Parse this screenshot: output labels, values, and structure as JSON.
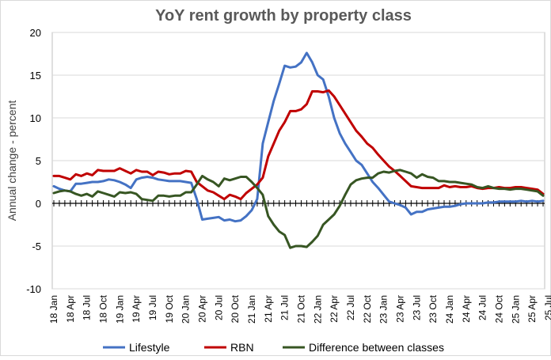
{
  "chart_data": {
    "type": "line",
    "title": "YoY rent growth by property class",
    "ylabel": "Annual change - percent",
    "xlabel": "",
    "ylim": [
      -10,
      20
    ],
    "yticks": [
      -10,
      -5,
      0,
      5,
      10,
      15,
      20
    ],
    "grid": "horizontal",
    "legend": "bottom",
    "x_tick_labels": [
      "18 Jan",
      "18 Apr",
      "18 Jul",
      "18 Oct",
      "19 Jan",
      "19 Apr",
      "19 Jul",
      "19 Oct",
      "20 Jan",
      "20 Apr",
      "20 Jul",
      "20 Oct",
      "21 Jan",
      "21 Apr",
      "21 Jul",
      "21 Oct",
      "22 Jan",
      "22 Apr",
      "22 Jul",
      "22 Oct",
      "23 Jan",
      "23 Apr",
      "23 Jul",
      "23 Oct",
      "24 Jan",
      "24 Apr",
      "24 Jul",
      "24 Oct",
      "25 Jan",
      "25 Apr",
      "25 Jul"
    ],
    "series": [
      {
        "name": "Lifestyle",
        "color": "#4472C4",
        "values": [
          2.0,
          1.7,
          1.5,
          1.4,
          2.3,
          2.3,
          2.4,
          2.5,
          2.5,
          2.6,
          2.8,
          2.7,
          2.5,
          2.2,
          1.8,
          2.8,
          3.0,
          3.1,
          3.0,
          2.8,
          2.7,
          2.6,
          2.6,
          2.6,
          2.5,
          2.4,
          0.5,
          -1.9,
          -1.8,
          -1.7,
          -1.6,
          -2.0,
          -1.9,
          -2.1,
          -2.0,
          -1.5,
          -0.8,
          0.5,
          7.0,
          9.5,
          12.0,
          14.0,
          16.1,
          15.9,
          16.0,
          16.5,
          17.6,
          16.5,
          15.0,
          14.5,
          12.5,
          10.0,
          8.2,
          7.0,
          6.0,
          5.0,
          4.5,
          3.5,
          2.5,
          1.8,
          1.0,
          0.2,
          0.0,
          -0.2,
          -0.5,
          -1.3,
          -1.0,
          -1.0,
          -0.7,
          -0.6,
          -0.5,
          -0.4,
          -0.4,
          -0.3,
          -0.1,
          0.0,
          0.0,
          0.0,
          0.0,
          0.1,
          0.1,
          0.2,
          0.2,
          0.2,
          0.2,
          0.3,
          0.2,
          0.3,
          0.2,
          0.3
        ]
      },
      {
        "name": "RBN",
        "color": "#C00000",
        "values": [
          3.2,
          3.2,
          3.0,
          2.8,
          3.4,
          3.2,
          3.5,
          3.3,
          3.9,
          3.8,
          3.8,
          3.8,
          4.1,
          3.8,
          3.5,
          3.9,
          3.7,
          3.7,
          3.3,
          3.7,
          3.6,
          3.4,
          3.5,
          3.5,
          3.8,
          3.7,
          2.5,
          2.0,
          1.5,
          1.3,
          0.9,
          0.5,
          1.0,
          0.8,
          0.5,
          1.2,
          1.7,
          2.2,
          3.0,
          5.5,
          7.0,
          8.5,
          9.5,
          10.8,
          10.8,
          11.0,
          11.6,
          13.1,
          13.1,
          13.0,
          13.2,
          12.5,
          11.5,
          10.5,
          9.5,
          8.5,
          7.8,
          7.0,
          6.5,
          5.7,
          5.0,
          4.3,
          3.8,
          3.2,
          2.6,
          2.0,
          1.9,
          1.8,
          1.8,
          1.8,
          1.8,
          2.1,
          1.9,
          2.0,
          1.9,
          1.9,
          2.0,
          1.8,
          1.7,
          1.8,
          1.8,
          1.9,
          1.8,
          1.8,
          1.9,
          1.9,
          1.8,
          1.7,
          1.6,
          1.1
        ]
      },
      {
        "name": "Difference between classes",
        "color": "#375623",
        "values": [
          1.2,
          1.4,
          1.5,
          1.4,
          1.1,
          0.9,
          1.1,
          0.8,
          1.4,
          1.2,
          1.0,
          0.8,
          1.3,
          1.2,
          1.3,
          1.1,
          0.5,
          0.4,
          0.3,
          0.9,
          0.9,
          0.8,
          0.9,
          0.9,
          1.3,
          1.3,
          2.2,
          3.2,
          2.8,
          2.5,
          2.0,
          2.9,
          2.7,
          2.9,
          3.1,
          3.1,
          2.5,
          1.8,
          1.0,
          -1.5,
          -2.5,
          -3.3,
          -3.7,
          -5.2,
          -5.0,
          -5.0,
          -5.1,
          -4.5,
          -3.8,
          -2.5,
          -1.9,
          -1.3,
          -0.3,
          1.0,
          2.2,
          2.7,
          2.9,
          3.0,
          3.0,
          3.5,
          3.7,
          3.6,
          3.8,
          3.9,
          3.7,
          3.5,
          3.0,
          3.4,
          3.1,
          3.0,
          2.6,
          2.6,
          2.5,
          2.5,
          2.4,
          2.3,
          2.2,
          1.9,
          1.8,
          2.0,
          1.8,
          1.7,
          1.7,
          1.6,
          1.7,
          1.7,
          1.6,
          1.5,
          1.4,
          0.9
        ]
      }
    ]
  }
}
